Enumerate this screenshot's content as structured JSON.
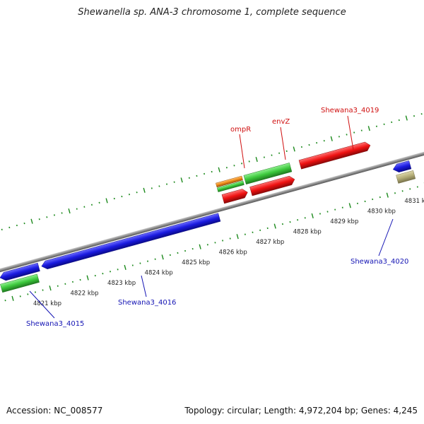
{
  "title": "Shewanella sp. ANA-3 chromosome 1, complete sequence",
  "footer": {
    "accession": "Accession: NC_008577",
    "summary": "Topology: circular; Length: 4,972,204 bp; Genes: 4,245"
  },
  "colors": {
    "backbone": "#8a8a8a",
    "ticks": "#1d8a1d",
    "blue_gene": "#1a1adf",
    "green_gene": "#3cc83c",
    "red_gene": "#ee1111",
    "orange_gene": "#f08c1a",
    "tan_gene": "#b4ad78",
    "forward_label": "#d01010",
    "reverse_label": "#1414b4"
  },
  "ruler": {
    "ticks": [
      {
        "label": "4821 kbp"
      },
      {
        "label": "4822 kbp"
      },
      {
        "label": "4823 kbp"
      },
      {
        "label": "4824 kbp"
      },
      {
        "label": "4825 kbp"
      },
      {
        "label": "4826 kbp"
      },
      {
        "label": "4827 kbp"
      },
      {
        "label": "4828 kbp"
      },
      {
        "label": "4829 kbp"
      },
      {
        "label": "4830 kbp"
      },
      {
        "label": "4831 kbp"
      }
    ]
  },
  "genes": {
    "forward_labels": [
      "ompR",
      "envZ",
      "Shewana3_4019"
    ],
    "reverse_labels": [
      "Shewana3_4015",
      "Shewana3_4016",
      "Shewana3_4020"
    ]
  }
}
